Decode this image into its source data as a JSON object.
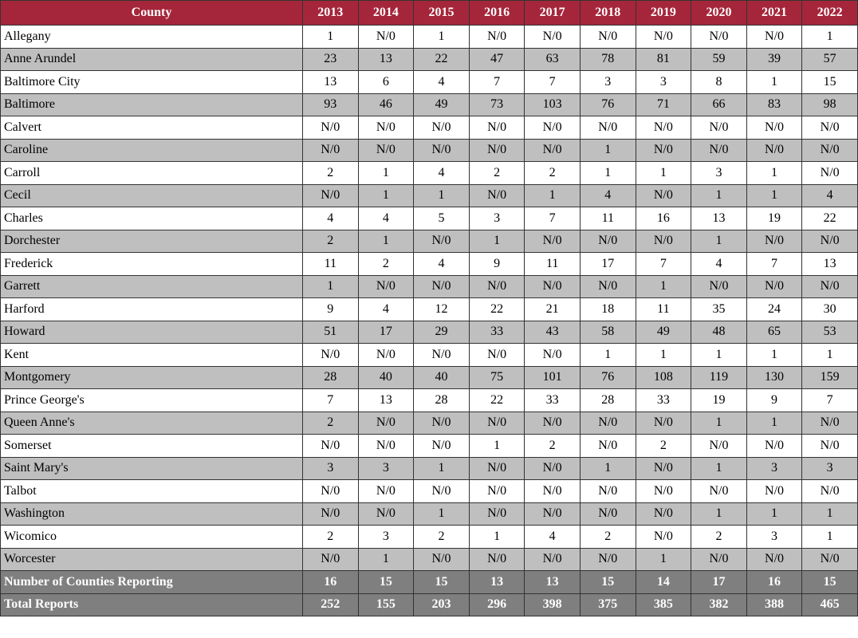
{
  "table": {
    "header": {
      "county": "County",
      "years": [
        "2013",
        "2014",
        "2015",
        "2016",
        "2017",
        "2018",
        "2019",
        "2020",
        "2021",
        "2022"
      ]
    },
    "rows": [
      {
        "county": "Allegany",
        "values": [
          "1",
          "N/0",
          "1",
          "N/0",
          "N/0",
          "N/0",
          "N/0",
          "N/0",
          "N/0",
          "1"
        ]
      },
      {
        "county": "Anne Arundel",
        "values": [
          "23",
          "13",
          "22",
          "47",
          "63",
          "78",
          "81",
          "59",
          "39",
          "57"
        ]
      },
      {
        "county": "Baltimore City",
        "values": [
          "13",
          "6",
          "4",
          "7",
          "7",
          "3",
          "3",
          "8",
          "1",
          "15"
        ]
      },
      {
        "county": "Baltimore",
        "values": [
          "93",
          "46",
          "49",
          "73",
          "103",
          "76",
          "71",
          "66",
          "83",
          "98"
        ]
      },
      {
        "county": "Calvert",
        "values": [
          "N/0",
          "N/0",
          "N/0",
          "N/0",
          "N/0",
          "N/0",
          "N/0",
          "N/0",
          "N/0",
          "N/0"
        ]
      },
      {
        "county": "Caroline",
        "values": [
          "N/0",
          "N/0",
          "N/0",
          "N/0",
          "N/0",
          "1",
          "N/0",
          "N/0",
          "N/0",
          "N/0"
        ]
      },
      {
        "county": "Carroll",
        "values": [
          "2",
          "1",
          "4",
          "2",
          "2",
          "1",
          "1",
          "3",
          "1",
          "N/0"
        ]
      },
      {
        "county": "Cecil",
        "values": [
          "N/0",
          "1",
          "1",
          "N/0",
          "1",
          "4",
          "N/0",
          "1",
          "1",
          "4"
        ]
      },
      {
        "county": "Charles",
        "values": [
          "4",
          "4",
          "5",
          "3",
          "7",
          "11",
          "16",
          "13",
          "19",
          "22"
        ]
      },
      {
        "county": "Dorchester",
        "values": [
          "2",
          "1",
          "N/0",
          "1",
          "N/0",
          "N/0",
          "N/0",
          "1",
          "N/0",
          "N/0"
        ]
      },
      {
        "county": "Frederick",
        "values": [
          "11",
          "2",
          "4",
          "9",
          "11",
          "17",
          "7",
          "4",
          "7",
          "13"
        ]
      },
      {
        "county": "Garrett",
        "values": [
          "1",
          "N/0",
          "N/0",
          "N/0",
          "N/0",
          "N/0",
          "1",
          "N/0",
          "N/0",
          "N/0"
        ]
      },
      {
        "county": "Harford",
        "values": [
          "9",
          "4",
          "12",
          "22",
          "21",
          "18",
          "11",
          "35",
          "24",
          "30"
        ]
      },
      {
        "county": "Howard",
        "values": [
          "51",
          "17",
          "29",
          "33",
          "43",
          "58",
          "49",
          "48",
          "65",
          "53"
        ]
      },
      {
        "county": "Kent",
        "values": [
          "N/0",
          "N/0",
          "N/0",
          "N/0",
          "N/0",
          "1",
          "1",
          "1",
          "1",
          "1"
        ]
      },
      {
        "county": "Montgomery",
        "values": [
          "28",
          "40",
          "40",
          "75",
          "101",
          "76",
          "108",
          "119",
          "130",
          "159"
        ]
      },
      {
        "county": "Prince George's",
        "values": [
          "7",
          "13",
          "28",
          "22",
          "33",
          "28",
          "33",
          "19",
          "9",
          "7"
        ]
      },
      {
        "county": "Queen Anne's",
        "values": [
          "2",
          "N/0",
          "N/0",
          "N/0",
          "N/0",
          "N/0",
          "N/0",
          "1",
          "1",
          "N/0"
        ]
      },
      {
        "county": "Somerset",
        "values": [
          "N/0",
          "N/0",
          "N/0",
          "1",
          "2",
          "N/0",
          "2",
          "N/0",
          "N/0",
          "N/0"
        ]
      },
      {
        "county": "Saint Mary's",
        "values": [
          "3",
          "3",
          "1",
          "N/0",
          "N/0",
          "1",
          "N/0",
          "1",
          "3",
          "3"
        ]
      },
      {
        "county": "Talbot",
        "values": [
          "N/0",
          "N/0",
          "N/0",
          "N/0",
          "N/0",
          "N/0",
          "N/0",
          "N/0",
          "N/0",
          "N/0"
        ]
      },
      {
        "county": "Washington",
        "values": [
          "N/0",
          "N/0",
          "1",
          "N/0",
          "N/0",
          "N/0",
          "N/0",
          "1",
          "1",
          "1"
        ]
      },
      {
        "county": "Wicomico",
        "values": [
          "2",
          "3",
          "2",
          "1",
          "4",
          "2",
          "N/0",
          "2",
          "3",
          "1"
        ]
      },
      {
        "county": "Worcester",
        "values": [
          "N/0",
          "1",
          "N/0",
          "N/0",
          "N/0",
          "N/0",
          "1",
          "N/0",
          "N/0",
          "N/0"
        ]
      }
    ],
    "footer": [
      {
        "label": "Number of Counties Reporting",
        "values": [
          "16",
          "15",
          "15",
          "13",
          "13",
          "15",
          "14",
          "17",
          "16",
          "15"
        ]
      },
      {
        "label": "Total Reports",
        "values": [
          "252",
          "155",
          "203",
          "296",
          "398",
          "375",
          "385",
          "382",
          "388",
          "465"
        ]
      }
    ],
    "colors": {
      "header_bg": "#a5263a",
      "header_text": "#ffffff",
      "alt_row_bg": "#bfbfbf",
      "footer_bg": "#7f7f7f",
      "footer_text": "#ffffff"
    }
  }
}
